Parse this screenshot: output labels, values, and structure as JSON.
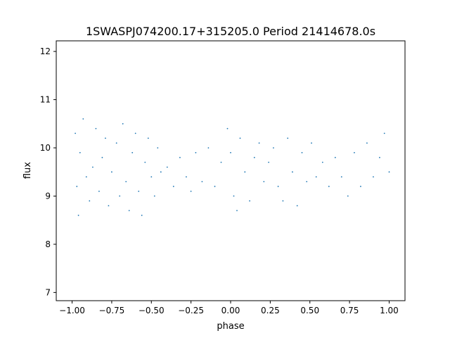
{
  "chart_data": {
    "type": "scatter",
    "title": "1SWASPJ074200.17+315205.0 Period 21414678.0s",
    "xlabel": "phase",
    "ylabel": "flux",
    "xlim": [
      -1.1,
      1.1
    ],
    "ylim": [
      6.83,
      12.22
    ],
    "xticks": [
      -1.0,
      -0.75,
      -0.5,
      -0.25,
      0.0,
      0.25,
      0.5,
      0.75,
      1.0
    ],
    "xtick_labels": [
      "−1.00",
      "−0.75",
      "−0.50",
      "−0.25",
      "0.00",
      "0.25",
      "0.50",
      "0.75",
      "1.00"
    ],
    "yticks": [
      7,
      8,
      9,
      10,
      11,
      12
    ],
    "ytick_labels": [
      "7",
      "8",
      "9",
      "10",
      "11",
      "12"
    ],
    "grid": false,
    "legend": "none",
    "marker_color": "#1f77b4",
    "series": [
      {
        "points": [
          [
            -0.98,
            10.3
          ],
          [
            -0.97,
            9.2
          ],
          [
            -0.96,
            8.6
          ],
          [
            -0.95,
            9.9
          ],
          [
            -0.93,
            10.6
          ],
          [
            -0.91,
            9.4
          ],
          [
            -0.89,
            8.9
          ],
          [
            -0.87,
            9.6
          ],
          [
            -0.85,
            10.4
          ],
          [
            -0.83,
            9.1
          ],
          [
            -0.81,
            9.8
          ],
          [
            -0.79,
            10.2
          ],
          [
            -0.77,
            8.8
          ],
          [
            -0.75,
            9.5
          ],
          [
            -0.72,
            10.1
          ],
          [
            -0.7,
            9.0
          ],
          [
            -0.68,
            10.5
          ],
          [
            -0.66,
            9.3
          ],
          [
            -0.64,
            8.7
          ],
          [
            -0.62,
            9.9
          ],
          [
            -0.6,
            10.3
          ],
          [
            -0.58,
            9.1
          ],
          [
            -0.56,
            8.6
          ],
          [
            -0.54,
            9.7
          ],
          [
            -0.52,
            10.2
          ],
          [
            -0.5,
            9.4
          ],
          [
            -0.48,
            9.0
          ],
          [
            -0.46,
            10.0
          ],
          [
            -0.44,
            9.5
          ],
          [
            -0.4,
            9.6
          ],
          [
            -0.36,
            9.2
          ],
          [
            -0.32,
            9.8
          ],
          [
            -0.28,
            9.4
          ],
          [
            -0.25,
            9.1
          ],
          [
            -0.22,
            9.9
          ],
          [
            -0.18,
            9.3
          ],
          [
            -0.14,
            10.0
          ],
          [
            -0.1,
            9.2
          ],
          [
            -0.06,
            9.7
          ],
          [
            -0.02,
            10.4
          ],
          [
            0.0,
            9.9
          ],
          [
            0.02,
            9.0
          ],
          [
            0.04,
            8.7
          ],
          [
            0.06,
            10.2
          ],
          [
            0.09,
            9.5
          ],
          [
            0.12,
            8.9
          ],
          [
            0.15,
            9.8
          ],
          [
            0.18,
            10.1
          ],
          [
            0.21,
            9.3
          ],
          [
            0.24,
            9.7
          ],
          [
            0.27,
            10.0
          ],
          [
            0.3,
            9.2
          ],
          [
            0.33,
            8.9
          ],
          [
            0.36,
            10.2
          ],
          [
            0.39,
            9.5
          ],
          [
            0.42,
            8.8
          ],
          [
            0.45,
            9.9
          ],
          [
            0.48,
            9.3
          ],
          [
            0.51,
            10.1
          ],
          [
            0.54,
            9.4
          ],
          [
            0.58,
            9.7
          ],
          [
            0.62,
            9.2
          ],
          [
            0.66,
            9.8
          ],
          [
            0.7,
            9.4
          ],
          [
            0.74,
            9.0
          ],
          [
            0.78,
            9.9
          ],
          [
            0.82,
            9.2
          ],
          [
            0.86,
            10.1
          ],
          [
            0.9,
            9.4
          ],
          [
            0.94,
            9.8
          ],
          [
            0.97,
            10.3
          ],
          [
            1.0,
            9.5
          ]
        ]
      }
    ]
  }
}
